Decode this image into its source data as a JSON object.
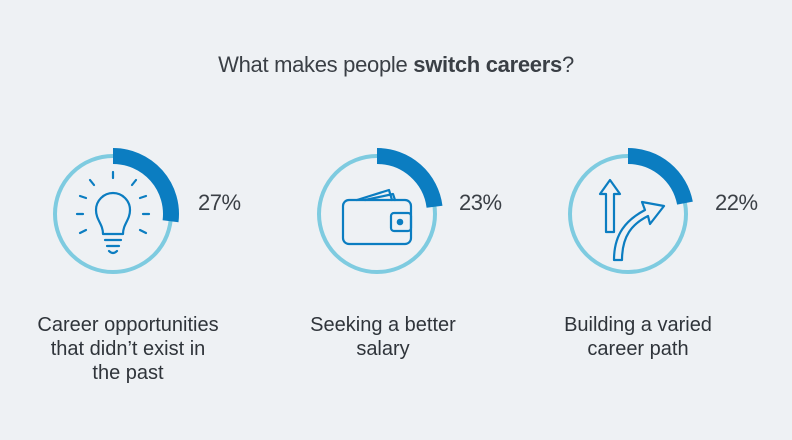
{
  "title": {
    "prefix": "What makes people ",
    "bold": "switch careers",
    "suffix": "?"
  },
  "colors": {
    "ring": "#7ecbe0",
    "arc": "#0b7dc1",
    "icon": "#0b7dc1",
    "background": "#eef1f4"
  },
  "chart_data": {
    "type": "gauge",
    "categories": [
      "Career opportunities that didn’t exist in the past",
      "Seeking a better salary",
      "Building a varied career path"
    ],
    "values": [
      27,
      23,
      22
    ],
    "value_labels": [
      "27%",
      "23%",
      "22%"
    ],
    "icons": [
      "lightbulb-icon",
      "wallet-icon",
      "diverging-arrows-icon"
    ],
    "unit": "%"
  },
  "items": [
    {
      "pct": "27%",
      "label_lines": [
        "Career opportunities",
        "that didn’t exist in",
        "the past"
      ]
    },
    {
      "pct": "23%",
      "label_lines": [
        "Seeking a better",
        "salary"
      ]
    },
    {
      "pct": "22%",
      "label_lines": [
        "Building a varied",
        "career path"
      ]
    }
  ]
}
